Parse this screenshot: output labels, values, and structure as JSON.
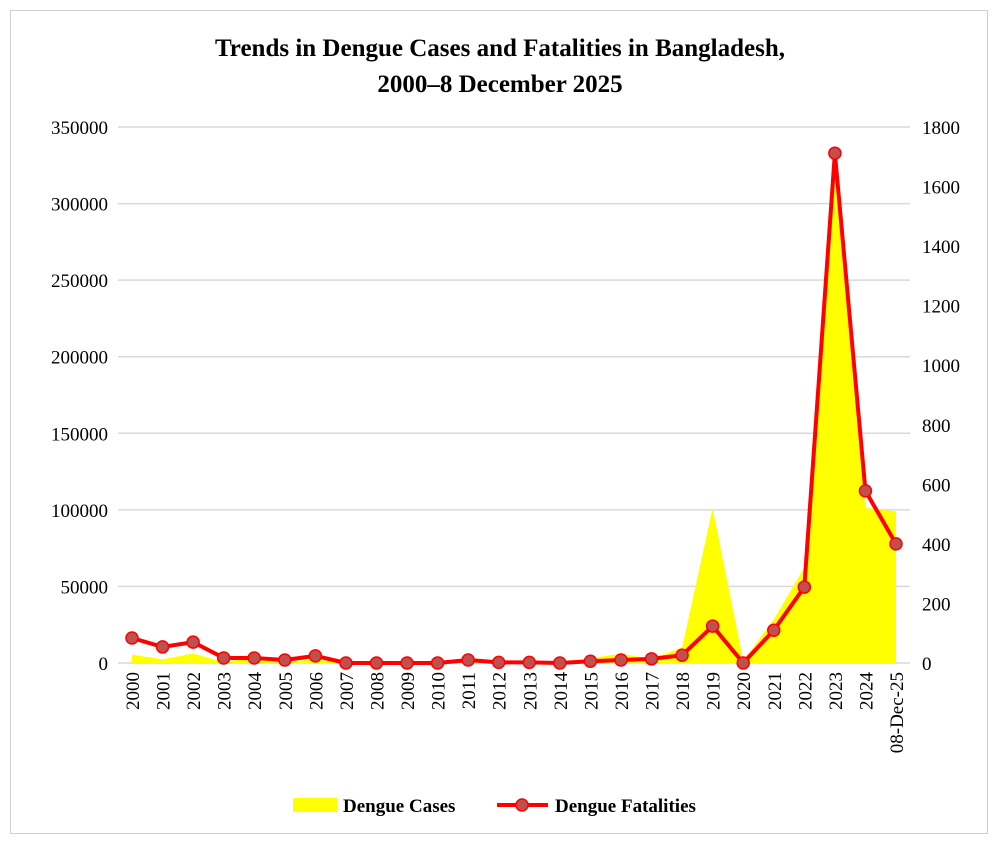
{
  "chart_data": {
    "type": "area+line",
    "title_lines": [
      "Trends in Dengue Cases and Fatalities in Bangladesh,",
      "2000–8 December 2025"
    ],
    "categories": [
      "2000",
      "2001",
      "2002",
      "2003",
      "2004",
      "2005",
      "2006",
      "2007",
      "2008",
      "2009",
      "2010",
      "2011",
      "2012",
      "2013",
      "2014",
      "2015",
      "2016",
      "2017",
      "2018",
      "2019",
      "2020",
      "2021",
      "2022",
      "2023",
      "2024",
      "08-Dec-25"
    ],
    "series": [
      {
        "name": "Dengue Cases",
        "type": "area",
        "axis": "left",
        "color": "#ffff00",
        "values": [
          5500,
          2400,
          6200,
          500,
          3900,
          1000,
          2200,
          500,
          1200,
          500,
          400,
          1400,
          700,
          1700,
          400,
          3200,
          6000,
          2800,
          10000,
          101000,
          1400,
          28400,
          62400,
          321000,
          101200,
          99000
        ]
      },
      {
        "name": "Dengue Fatalities",
        "type": "line",
        "axis": "right",
        "color": "#ff0000",
        "marker_color": "#c0504d",
        "values": [
          84,
          54,
          70,
          17,
          17,
          10,
          24,
          0,
          0,
          0,
          0,
          10,
          2,
          2,
          0,
          6,
          10,
          14,
          26,
          124,
          0,
          110,
          255,
          1712,
          578,
          400
        ]
      }
    ],
    "left_axis": {
      "min": 0,
      "max": 350000,
      "ticks": [
        "0",
        "50000",
        "100000",
        "150000",
        "200000",
        "250000",
        "300000",
        "350000"
      ]
    },
    "right_axis": {
      "min": 0,
      "max": 1800,
      "ticks": [
        "0",
        "200",
        "400",
        "600",
        "800",
        "1000",
        "1200",
        "1400",
        "1600",
        "1800"
      ]
    },
    "grid": true,
    "legend_position": "bottom"
  }
}
